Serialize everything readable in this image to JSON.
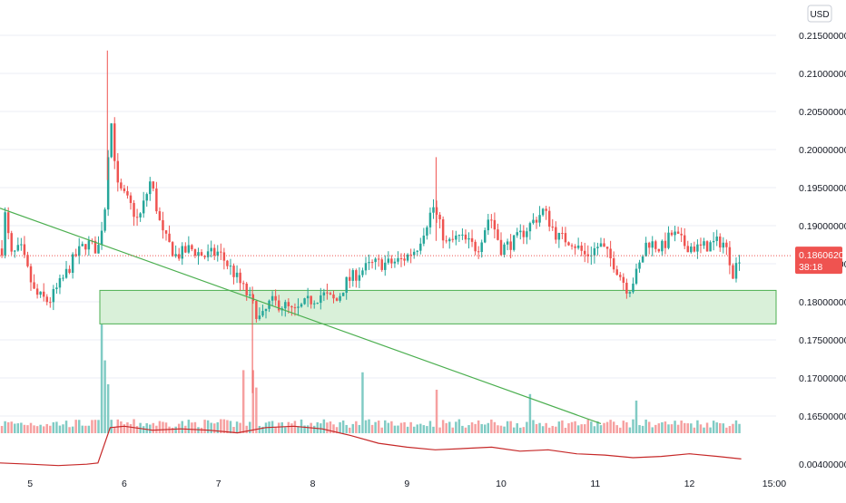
{
  "chart_data": [
    {
      "type": "candlestick",
      "currency": "USD",
      "y_ticks": [
        "0.21500000",
        "0.21000000",
        "0.20500000",
        "0.20000000",
        "0.19500000",
        "0.19000000",
        "0.18500000",
        "0.18000000",
        "0.17500000",
        "0.17000000",
        "0.16500000"
      ],
      "ylim": [
        0.1625,
        0.2175
      ],
      "x_ticks": [
        "5",
        "6",
        "7",
        "8",
        "9",
        "10",
        "11",
        "12",
        "15:00"
      ],
      "x_tick_positions": [
        5,
        6,
        7,
        8,
        9,
        10,
        11,
        12,
        12.9
      ],
      "xlim": [
        4.68,
        12.92
      ],
      "last_price": "0.18606209",
      "countdown": "38:18",
      "zone": {
        "x_start": 5.74,
        "x_end": 12.92,
        "y_low": 0.1771,
        "y_high": 0.1815
      },
      "trendline": {
        "x1": 4.68,
        "y1": 0.1923,
        "x2": 11.06,
        "y2": 0.164
      },
      "ohlc_checkpoints": [
        {
          "t": 4.7,
          "p": 0.187
        },
        {
          "t": 4.72,
          "p": 0.1925
        },
        {
          "t": 4.8,
          "p": 0.186
        },
        {
          "t": 4.9,
          "p": 0.187
        },
        {
          "t": 5.05,
          "p": 0.181
        },
        {
          "t": 5.2,
          "p": 0.18
        },
        {
          "t": 5.35,
          "p": 0.183
        },
        {
          "t": 5.48,
          "p": 0.186
        },
        {
          "t": 5.6,
          "p": 0.1878
        },
        {
          "t": 5.72,
          "p": 0.1868
        },
        {
          "t": 5.8,
          "p": 0.193
        },
        {
          "t": 5.85,
          "p": 0.205
        },
        {
          "t": 5.93,
          "p": 0.195
        },
        {
          "t": 6.05,
          "p": 0.193
        },
        {
          "t": 6.15,
          "p": 0.1905
        },
        {
          "t": 6.28,
          "p": 0.196
        },
        {
          "t": 6.4,
          "p": 0.189
        },
        {
          "t": 6.55,
          "p": 0.186
        },
        {
          "t": 6.7,
          "p": 0.187
        },
        {
          "t": 6.85,
          "p": 0.186
        },
        {
          "t": 7.0,
          "p": 0.1865
        },
        {
          "t": 7.15,
          "p": 0.184
        },
        {
          "t": 7.3,
          "p": 0.181
        },
        {
          "t": 7.45,
          "p": 0.1775
        },
        {
          "t": 7.55,
          "p": 0.18
        },
        {
          "t": 7.7,
          "p": 0.1795
        },
        {
          "t": 7.8,
          "p": 0.1785
        },
        {
          "t": 7.95,
          "p": 0.18
        },
        {
          "t": 8.1,
          "p": 0.181
        },
        {
          "t": 8.25,
          "p": 0.18
        },
        {
          "t": 8.35,
          "p": 0.1825
        },
        {
          "t": 8.5,
          "p": 0.184
        },
        {
          "t": 8.65,
          "p": 0.185
        },
        {
          "t": 8.8,
          "p": 0.185
        },
        {
          "t": 8.95,
          "p": 0.1855
        },
        {
          "t": 9.1,
          "p": 0.187
        },
        {
          "t": 9.28,
          "p": 0.1925
        },
        {
          "t": 9.42,
          "p": 0.1875
        },
        {
          "t": 9.55,
          "p": 0.1885
        },
        {
          "t": 9.75,
          "p": 0.187
        },
        {
          "t": 9.88,
          "p": 0.1915
        },
        {
          "t": 10.0,
          "p": 0.187
        },
        {
          "t": 10.15,
          "p": 0.188
        },
        {
          "t": 10.3,
          "p": 0.19
        },
        {
          "t": 10.45,
          "p": 0.192
        },
        {
          "t": 10.6,
          "p": 0.1885
        },
        {
          "t": 10.75,
          "p": 0.188
        },
        {
          "t": 10.9,
          "p": 0.186
        },
        {
          "t": 11.05,
          "p": 0.1875
        },
        {
          "t": 11.2,
          "p": 0.185
        },
        {
          "t": 11.35,
          "p": 0.1815
        },
        {
          "t": 11.45,
          "p": 0.184
        },
        {
          "t": 11.55,
          "p": 0.188
        },
        {
          "t": 11.7,
          "p": 0.187
        },
        {
          "t": 11.82,
          "p": 0.189
        },
        {
          "t": 11.95,
          "p": 0.1875
        },
        {
          "t": 12.1,
          "p": 0.187
        },
        {
          "t": 12.22,
          "p": 0.1875
        },
        {
          "t": 12.35,
          "p": 0.188
        },
        {
          "t": 12.42,
          "p": 0.186
        },
        {
          "t": 12.47,
          "p": 0.1835
        },
        {
          "t": 12.52,
          "p": 0.186
        }
      ],
      "volume_spikes": [
        {
          "t": 5.75,
          "v": 1.0
        },
        {
          "t": 5.79,
          "v": 0.67
        },
        {
          "t": 5.83,
          "v": 0.45
        },
        {
          "t": 7.27,
          "v": 0.58
        },
        {
          "t": 7.37,
          "v": 0.58
        },
        {
          "t": 7.41,
          "v": 0.42
        },
        {
          "t": 8.52,
          "v": 0.56
        },
        {
          "t": 9.33,
          "v": 0.4
        },
        {
          "t": 10.3,
          "v": 0.36
        },
        {
          "t": 11.45,
          "v": 0.3
        }
      ]
    },
    {
      "type": "line",
      "y_ticks": [
        "0.00400000"
      ],
      "ylim": [
        0.0036,
        0.0072
      ],
      "x": [
        4.68,
        5.0,
        5.3,
        5.6,
        5.72,
        5.85,
        6.0,
        6.3,
        6.6,
        6.9,
        7.2,
        7.5,
        7.8,
        8.1,
        8.4,
        8.7,
        9.0,
        9.3,
        9.6,
        9.9,
        10.2,
        10.5,
        10.8,
        11.1,
        11.4,
        11.7,
        12.0,
        12.3,
        12.55
      ],
      "values": [
        0.0041,
        0.004,
        0.0039,
        0.004,
        0.0041,
        0.0068,
        0.0069,
        0.0066,
        0.0067,
        0.0066,
        0.0064,
        0.0068,
        0.0069,
        0.0067,
        0.0062,
        0.0056,
        0.0053,
        0.0051,
        0.0052,
        0.0053,
        0.005,
        0.0051,
        0.0048,
        0.0047,
        0.0045,
        0.0046,
        0.0048,
        0.0046,
        0.0044
      ]
    }
  ],
  "colors": {
    "up": "#26a69a",
    "down": "#ef5350",
    "up_volume": "#80cbc4",
    "down_volume": "#f6a0a0",
    "zone_fill": "#d9f0d9",
    "zone_border": "#4caf50",
    "trendline": "#4caf50",
    "last_price_label": "#ef5350",
    "indicator": "#c62828",
    "axis_text": "#131722",
    "grid": "#ebeef5"
  }
}
